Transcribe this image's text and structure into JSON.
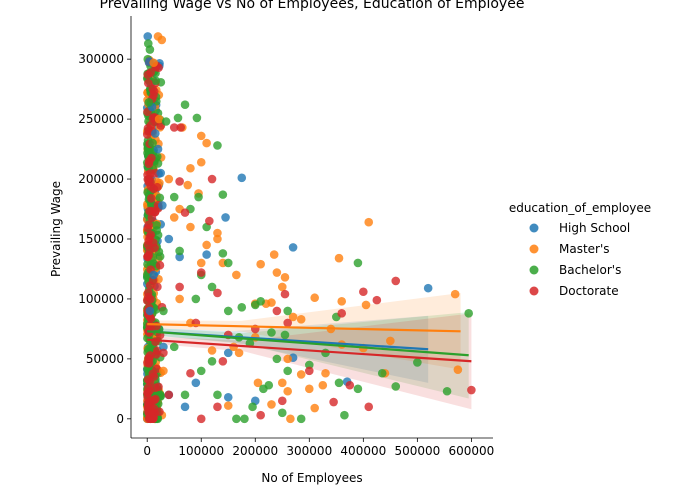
{
  "chart_data": {
    "type": "scatter",
    "title": "Prevailing Wage vs No of Employees, Education of Employee",
    "xlabel": "No of Employees",
    "ylabel": "Prevailing Wage",
    "xlim": [
      -30000,
      640000
    ],
    "ylim": [
      -16000,
      336000
    ],
    "x_ticks": [
      0,
      100000,
      200000,
      300000,
      400000,
      500000,
      600000
    ],
    "y_ticks": [
      0,
      50000,
      100000,
      150000,
      200000,
      250000,
      300000
    ],
    "legend": {
      "title": "education_of_employee",
      "position": "right"
    },
    "series": [
      {
        "name": "High School",
        "color": "#1f77b4",
        "points": [
          [
            1000,
            319000
          ],
          [
            4000,
            298000
          ],
          [
            9000,
            260000
          ],
          [
            15000,
            238000
          ],
          [
            20000,
            225000
          ],
          [
            25000,
            205000
          ],
          [
            28000,
            178000
          ],
          [
            40000,
            150000
          ],
          [
            60000,
            135000
          ],
          [
            110000,
            137000
          ],
          [
            145000,
            168000
          ],
          [
            175000,
            201000
          ],
          [
            270000,
            143000
          ],
          [
            520000,
            109000
          ],
          [
            270000,
            51000
          ],
          [
            370000,
            31000
          ],
          [
            150000,
            18000
          ],
          [
            40000,
            20000
          ],
          [
            70000,
            10000
          ],
          [
            5000,
            90000
          ],
          [
            12000,
            120000
          ],
          [
            30000,
            60000
          ],
          [
            90000,
            30000
          ],
          [
            150000,
            55000
          ],
          [
            200000,
            15000
          ]
        ],
        "fit": {
          "x": [
            0,
            520000
          ],
          "y": [
            73000,
            58000
          ]
        }
      },
      {
        "name": "Master's",
        "color": "#ff7f0e",
        "points": [
          [
            20000,
            319000
          ],
          [
            27000,
            316000
          ],
          [
            12000,
            297000
          ],
          [
            22000,
            250000
          ],
          [
            65000,
            243000
          ],
          [
            100000,
            236000
          ],
          [
            110000,
            230000
          ],
          [
            100000,
            214000
          ],
          [
            80000,
            209000
          ],
          [
            75000,
            195000
          ],
          [
            40000,
            200000
          ],
          [
            60000,
            175000
          ],
          [
            50000,
            168000
          ],
          [
            95000,
            188000
          ],
          [
            80000,
            160000
          ],
          [
            130000,
            155000
          ],
          [
            130000,
            150000
          ],
          [
            110000,
            145000
          ],
          [
            100000,
            130000
          ],
          [
            140000,
            130000
          ],
          [
            165000,
            120000
          ],
          [
            210000,
            129000
          ],
          [
            235000,
            137000
          ],
          [
            240000,
            122000
          ],
          [
            250000,
            110000
          ],
          [
            255000,
            118000
          ],
          [
            230000,
            97000
          ],
          [
            220000,
            96000
          ],
          [
            200000,
            96000
          ],
          [
            270000,
            85000
          ],
          [
            285000,
            83000
          ],
          [
            310000,
            101000
          ],
          [
            355000,
            134000
          ],
          [
            360000,
            98000
          ],
          [
            410000,
            164000
          ],
          [
            405000,
            95000
          ],
          [
            340000,
            75000
          ],
          [
            360000,
            62000
          ],
          [
            400000,
            59000
          ],
          [
            450000,
            65000
          ],
          [
            440000,
            38000
          ],
          [
            330000,
            38000
          ],
          [
            325000,
            28000
          ],
          [
            300000,
            25000
          ],
          [
            285000,
            37000
          ],
          [
            260000,
            50000
          ],
          [
            260000,
            23000
          ],
          [
            230000,
            12000
          ],
          [
            250000,
            30000
          ],
          [
            205000,
            30000
          ],
          [
            150000,
            11000
          ],
          [
            200000,
            68000
          ],
          [
            170000,
            55000
          ],
          [
            120000,
            57000
          ],
          [
            570000,
            104000
          ],
          [
            575000,
            41000
          ],
          [
            310000,
            9000
          ],
          [
            265000,
            0
          ],
          [
            30000,
            40000
          ],
          [
            80000,
            80000
          ],
          [
            160000,
            60000
          ],
          [
            60000,
            100000
          ]
        ],
        "fit": {
          "x": [
            0,
            580000
          ],
          "y": [
            79000,
            73000
          ]
        }
      },
      {
        "name": "Bachelor's",
        "color": "#2ca02c",
        "points": [
          [
            2000,
            313000
          ],
          [
            5000,
            308000
          ],
          [
            16000,
            282000
          ],
          [
            3000,
            264000
          ],
          [
            70000,
            262000
          ],
          [
            92000,
            251000
          ],
          [
            57000,
            251000
          ],
          [
            35000,
            248000
          ],
          [
            130000,
            228000
          ],
          [
            10000,
            230000
          ],
          [
            20000,
            213000
          ],
          [
            50000,
            185000
          ],
          [
            95000,
            185000
          ],
          [
            140000,
            187000
          ],
          [
            80000,
            175000
          ],
          [
            110000,
            160000
          ],
          [
            60000,
            140000
          ],
          [
            140000,
            138000
          ],
          [
            150000,
            130000
          ],
          [
            120000,
            110000
          ],
          [
            90000,
            100000
          ],
          [
            150000,
            90000
          ],
          [
            175000,
            93000
          ],
          [
            200000,
            95000
          ],
          [
            210000,
            98000
          ],
          [
            230000,
            72000
          ],
          [
            255000,
            70000
          ],
          [
            260000,
            90000
          ],
          [
            300000,
            45000
          ],
          [
            350000,
            85000
          ],
          [
            390000,
            130000
          ],
          [
            330000,
            55000
          ],
          [
            355000,
            30000
          ],
          [
            365000,
            3000
          ],
          [
            390000,
            25000
          ],
          [
            435000,
            38000
          ],
          [
            460000,
            27000
          ],
          [
            500000,
            47000
          ],
          [
            555000,
            23000
          ],
          [
            595000,
            88000
          ],
          [
            250000,
            5000
          ],
          [
            285000,
            0
          ],
          [
            165000,
            0
          ],
          [
            180000,
            0
          ],
          [
            195000,
            10000
          ],
          [
            240000,
            50000
          ],
          [
            260000,
            40000
          ],
          [
            225000,
            28000
          ],
          [
            215000,
            25000
          ],
          [
            170000,
            68000
          ],
          [
            190000,
            63000
          ],
          [
            120000,
            48000
          ],
          [
            50000,
            60000
          ],
          [
            100000,
            40000
          ],
          [
            70000,
            20000
          ],
          [
            130000,
            20000
          ],
          [
            30000,
            90000
          ],
          [
            100000,
            120000
          ]
        ],
        "fit": {
          "x": [
            0,
            595000
          ],
          "y": [
            73000,
            53000
          ]
        }
      },
      {
        "name": "Doctorate",
        "color": "#d62728",
        "points": [
          [
            1000,
            287000
          ],
          [
            2000,
            280000
          ],
          [
            50000,
            243000
          ],
          [
            62000,
            243000
          ],
          [
            120000,
            200000
          ],
          [
            60000,
            198000
          ],
          [
            70000,
            172000
          ],
          [
            115000,
            165000
          ],
          [
            100000,
            122000
          ],
          [
            130000,
            105000
          ],
          [
            90000,
            80000
          ],
          [
            150000,
            70000
          ],
          [
            200000,
            75000
          ],
          [
            255000,
            104000
          ],
          [
            240000,
            90000
          ],
          [
            260000,
            80000
          ],
          [
            360000,
            88000
          ],
          [
            400000,
            106000
          ],
          [
            425000,
            99000
          ],
          [
            460000,
            115000
          ],
          [
            375000,
            28000
          ],
          [
            345000,
            14000
          ],
          [
            410000,
            10000
          ],
          [
            300000,
            40000
          ],
          [
            250000,
            15000
          ],
          [
            210000,
            3000
          ],
          [
            130000,
            10000
          ],
          [
            100000,
            0
          ],
          [
            140000,
            48000
          ],
          [
            80000,
            38000
          ],
          [
            40000,
            20000
          ],
          [
            30000,
            55000
          ],
          [
            60000,
            110000
          ],
          [
            600000,
            24000
          ]
        ],
        "fit": {
          "x": [
            0,
            600000
          ],
          "y": [
            66000,
            48000
          ]
        }
      }
    ]
  }
}
